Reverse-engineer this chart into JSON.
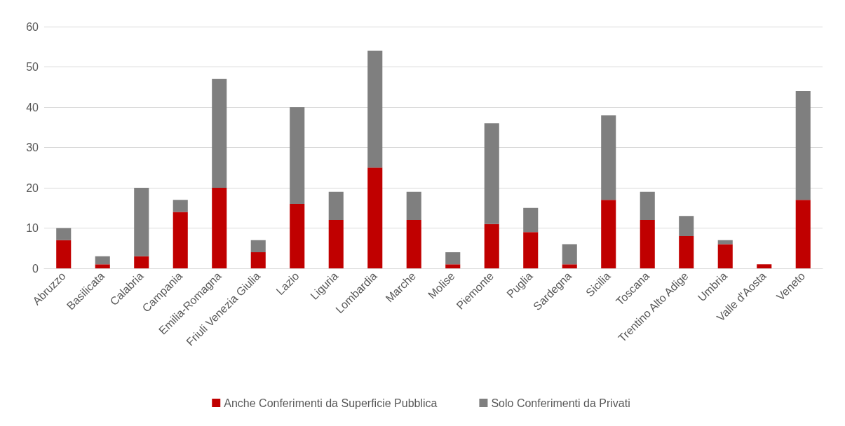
{
  "chart_data": {
    "type": "bar",
    "stacked": true,
    "categories": [
      "Abruzzo",
      "Basilicata",
      "Calabria",
      "Campania",
      "Emilia-Romagna",
      "Friuli Venezia Giulia",
      "Lazio",
      "Liguria",
      "Lombardia",
      "Marche",
      "Molise",
      "Piemonte",
      "Puglia",
      "Sardegna",
      "Sicilia",
      "Toscana",
      "Trentino Alto Adige",
      "Umbria",
      "Valle d'Aosta",
      "Veneto"
    ],
    "series": [
      {
        "name": "Anche Conferimenti da Superficie Pubblica",
        "color": "#c00000",
        "values": [
          7,
          1,
          3,
          14,
          20,
          4,
          16,
          12,
          25,
          12,
          1,
          11,
          9,
          1,
          17,
          12,
          8,
          6,
          1,
          17
        ]
      },
      {
        "name": "Solo Conferimenti da Privati",
        "color": "#7f7f7f",
        "values": [
          3,
          2,
          17,
          3,
          27,
          3,
          24,
          7,
          29,
          7,
          3,
          25,
          6,
          5,
          21,
          7,
          5,
          1,
          0,
          27
        ]
      }
    ],
    "ylim": [
      0,
      60
    ],
    "yticks": [
      0,
      10,
      20,
      30,
      40,
      50,
      60
    ],
    "grid": "y",
    "legend": "bottom"
  }
}
